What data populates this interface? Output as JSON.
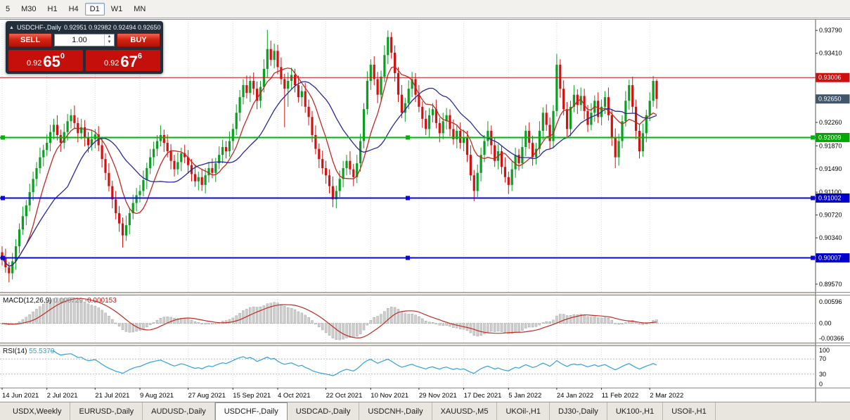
{
  "toolbar": {
    "timeframes": [
      {
        "label": "5",
        "active": false
      },
      {
        "label": "M30",
        "active": false
      },
      {
        "label": "H1",
        "active": false
      },
      {
        "label": "H4",
        "active": false
      },
      {
        "label": "D1",
        "active": true
      },
      {
        "label": "W1",
        "active": false
      },
      {
        "label": "MN",
        "active": false
      }
    ]
  },
  "trade_panel": {
    "collapse_icon": "▲",
    "symbol_title": "USDCHF-,Daily",
    "ohlc": "0.92951 0.92982 0.92494 0.92650",
    "sell_label": "SELL",
    "buy_label": "BUY",
    "volume": "1.00",
    "spin_up": "▲",
    "spin_down": "▼",
    "bid": {
      "prefix": "0.92",
      "big": "65",
      "sup": "0"
    },
    "ask": {
      "prefix": "0.92",
      "big": "67",
      "sup": "6"
    }
  },
  "chart_data": {
    "type": "candlestick",
    "symbol": "USDCHF",
    "timeframe": "Daily",
    "colors": {
      "up": "#0a9e22",
      "down": "#d41111",
      "grid": "#d9d9d9",
      "ma_fast": "#bf2a20",
      "ma_slow": "#28289a",
      "bg": "#ffffff"
    },
    "x_labels": [
      [
        "14 Jun 2021",
        0
      ],
      [
        "2 Jul 2021",
        13
      ],
      [
        "21 Jul 2021",
        27
      ],
      [
        "9 Aug 2021",
        40
      ],
      [
        "27 Aug 2021",
        54
      ],
      [
        "15 Sep 2021",
        67
      ],
      [
        "4 Oct 2021",
        80
      ],
      [
        "22 Oct 2021",
        94
      ],
      [
        "10 Nov 2021",
        107
      ],
      [
        "29 Nov 2021",
        121
      ],
      [
        "17 Dec 2021",
        134
      ],
      [
        "5 Jan 2022",
        147
      ],
      [
        "24 Jan 2022",
        161
      ],
      [
        "11 Feb 2022",
        174
      ],
      [
        "2 Mar 2022",
        188
      ]
    ],
    "price_axis": {
      "min": 0.8944,
      "max": 0.9398,
      "labels": [
        "0.93790",
        "0.93410",
        "0.92260",
        "0.91870",
        "0.91490",
        "0.91100",
        "0.90720",
        "0.90340",
        "0.89570"
      ],
      "tags": [
        {
          "value": "0.93006",
          "price": 0.93006,
          "color": "#cf0e0e"
        },
        {
          "value": "0.92650",
          "price": 0.9265,
          "color": "#42566a"
        },
        {
          "value": "0.92009",
          "price": 0.92009,
          "color": "#00a800"
        },
        {
          "value": "0.91002",
          "price": 0.91002,
          "color": "#0000cd"
        },
        {
          "value": "0.90007",
          "price": 0.90007,
          "color": "#0000cd"
        }
      ]
    },
    "hlines": [
      {
        "price": 0.93006,
        "color": "#cf0e0e",
        "width": 1,
        "handles": false
      },
      {
        "price": 0.92009,
        "color": "#00b50a",
        "width": 2,
        "handles": true
      },
      {
        "price": 0.91002,
        "color": "#0a0ad2",
        "width": 2,
        "handles": true
      },
      {
        "price": 0.90007,
        "color": "#0a0ad2",
        "width": 2,
        "handles": true
      }
    ],
    "ma": [
      {
        "period": 8,
        "color": "#bf2a20"
      },
      {
        "period": 20,
        "color": "#28289a"
      }
    ],
    "macd": {
      "label": "MACD(12,26,9)",
      "value": "0.000729",
      "signal_value": "-0.000153",
      "fast": 12,
      "slow": 26,
      "signal": 9,
      "axis": [
        "0.00596",
        "0.00",
        "-0.00366"
      ],
      "bar_color": "#cfcfcf",
      "bar_stroke": "#a3a3a3",
      "line_color": "#bf2a20"
    },
    "rsi": {
      "label": "RSI(14)",
      "value": "55.5379",
      "period": 14,
      "axis": [
        "100",
        "70",
        "30",
        "0"
      ],
      "levels": [
        70,
        30
      ],
      "color": "#2f9fe0"
    },
    "candles": [
      [
        0.901,
        0.902,
        0.8988,
        0.9
      ],
      [
        0.9,
        0.9016,
        0.8976,
        0.8985
      ],
      [
        0.8985,
        0.8994,
        0.896,
        0.8975
      ],
      [
        0.8975,
        0.9009,
        0.8965,
        0.8995
      ],
      [
        0.8995,
        0.9032,
        0.8981,
        0.902
      ],
      [
        0.902,
        0.9058,
        0.9008,
        0.9048
      ],
      [
        0.9048,
        0.9086,
        0.9039,
        0.907
      ],
      [
        0.907,
        0.9097,
        0.9055,
        0.9088
      ],
      [
        0.9088,
        0.9124,
        0.9078,
        0.911
      ],
      [
        0.911,
        0.9144,
        0.9096,
        0.9132
      ],
      [
        0.9132,
        0.916,
        0.912,
        0.915
      ],
      [
        0.915,
        0.9184,
        0.9141,
        0.9168
      ],
      [
        0.9168,
        0.9189,
        0.9153,
        0.918
      ],
      [
        0.918,
        0.9206,
        0.917,
        0.9192
      ],
      [
        0.9192,
        0.9222,
        0.9178,
        0.921
      ],
      [
        0.921,
        0.9232,
        0.9198,
        0.9222
      ],
      [
        0.9222,
        0.9238,
        0.9196,
        0.9205
      ],
      [
        0.9205,
        0.9214,
        0.9177,
        0.9192
      ],
      [
        0.9192,
        0.9224,
        0.9182,
        0.921
      ],
      [
        0.921,
        0.924,
        0.9196,
        0.9228
      ],
      [
        0.9228,
        0.9248,
        0.9216,
        0.9238
      ],
      [
        0.9238,
        0.9254,
        0.9216,
        0.9225
      ],
      [
        0.9225,
        0.9234,
        0.9193,
        0.9208
      ],
      [
        0.9208,
        0.9232,
        0.9198,
        0.9218
      ],
      [
        0.9218,
        0.923,
        0.9186,
        0.92
      ],
      [
        0.92,
        0.921,
        0.9176,
        0.9188
      ],
      [
        0.9188,
        0.9214,
        0.9179,
        0.9198
      ],
      [
        0.9198,
        0.9215,
        0.9183,
        0.9206
      ],
      [
        0.9206,
        0.922,
        0.9178,
        0.9188
      ],
      [
        0.9188,
        0.92,
        0.9151,
        0.9165
      ],
      [
        0.9165,
        0.9175,
        0.913,
        0.9142
      ],
      [
        0.9142,
        0.9158,
        0.9111,
        0.912
      ],
      [
        0.912,
        0.9129,
        0.9083,
        0.9098
      ],
      [
        0.9098,
        0.9112,
        0.9065,
        0.9075
      ],
      [
        0.9075,
        0.9087,
        0.9044,
        0.9058
      ],
      [
        0.9058,
        0.9068,
        0.9018,
        0.9038
      ],
      [
        0.9038,
        0.9071,
        0.9029,
        0.9055
      ],
      [
        0.9055,
        0.9084,
        0.904,
        0.9075
      ],
      [
        0.9075,
        0.9106,
        0.9065,
        0.9092
      ],
      [
        0.9092,
        0.9117,
        0.9078,
        0.9105
      ],
      [
        0.9105,
        0.9122,
        0.9093,
        0.9112
      ],
      [
        0.9112,
        0.9146,
        0.9103,
        0.913
      ],
      [
        0.913,
        0.9159,
        0.9115,
        0.915
      ],
      [
        0.915,
        0.9182,
        0.914,
        0.9168
      ],
      [
        0.9168,
        0.9194,
        0.9154,
        0.9182
      ],
      [
        0.9182,
        0.9205,
        0.917,
        0.9195
      ],
      [
        0.9195,
        0.9221,
        0.9186,
        0.9205
      ],
      [
        0.9205,
        0.9214,
        0.9177,
        0.9192
      ],
      [
        0.9192,
        0.9206,
        0.9168,
        0.9178
      ],
      [
        0.9178,
        0.919,
        0.9148,
        0.9162
      ],
      [
        0.9162,
        0.9172,
        0.9136,
        0.9148
      ],
      [
        0.9148,
        0.9176,
        0.9139,
        0.916
      ],
      [
        0.916,
        0.9184,
        0.9145,
        0.9175
      ],
      [
        0.9175,
        0.9189,
        0.9158,
        0.9168
      ],
      [
        0.9168,
        0.918,
        0.9141,
        0.9155
      ],
      [
        0.9155,
        0.9165,
        0.9128,
        0.914
      ],
      [
        0.914,
        0.9156,
        0.9119,
        0.9128
      ],
      [
        0.9128,
        0.9144,
        0.9113,
        0.9135
      ],
      [
        0.9135,
        0.9149,
        0.9112,
        0.9122
      ],
      [
        0.9122,
        0.915,
        0.9108,
        0.9138
      ],
      [
        0.9138,
        0.916,
        0.9126,
        0.915
      ],
      [
        0.915,
        0.9166,
        0.9133,
        0.9142
      ],
      [
        0.9142,
        0.9167,
        0.9127,
        0.9158
      ],
      [
        0.9158,
        0.9186,
        0.9148,
        0.9172
      ],
      [
        0.9172,
        0.9197,
        0.9158,
        0.9185
      ],
      [
        0.9185,
        0.9195,
        0.9166,
        0.9178
      ],
      [
        0.9178,
        0.9211,
        0.9169,
        0.9195
      ],
      [
        0.9195,
        0.9224,
        0.918,
        0.9215
      ],
      [
        0.9215,
        0.9256,
        0.9205,
        0.9242
      ],
      [
        0.9242,
        0.928,
        0.9228,
        0.9268
      ],
      [
        0.9268,
        0.9298,
        0.9256,
        0.9288
      ],
      [
        0.9288,
        0.9304,
        0.9266,
        0.9275
      ],
      [
        0.9275,
        0.9304,
        0.926,
        0.9295
      ],
      [
        0.9295,
        0.9309,
        0.9272,
        0.9282
      ],
      [
        0.9282,
        0.9294,
        0.9248,
        0.9262
      ],
      [
        0.9262,
        0.9295,
        0.925,
        0.9285
      ],
      [
        0.9285,
        0.9331,
        0.9276,
        0.9315
      ],
      [
        0.9315,
        0.938,
        0.93,
        0.9348
      ],
      [
        0.9348,
        0.9362,
        0.932,
        0.933
      ],
      [
        0.933,
        0.9357,
        0.9316,
        0.9345
      ],
      [
        0.9345,
        0.9355,
        0.9306,
        0.9318
      ],
      [
        0.9318,
        0.9334,
        0.9289,
        0.9298
      ],
      [
        0.9298,
        0.9307,
        0.9218,
        0.9282
      ],
      [
        0.9282,
        0.9309,
        0.9252,
        0.9295
      ],
      [
        0.9295,
        0.9317,
        0.9281,
        0.9305
      ],
      [
        0.9305,
        0.9315,
        0.9276,
        0.9288
      ],
      [
        0.9288,
        0.9304,
        0.9259,
        0.9268
      ],
      [
        0.9268,
        0.9287,
        0.9253,
        0.9278
      ],
      [
        0.9278,
        0.9292,
        0.9242,
        0.9252
      ],
      [
        0.9252,
        0.9264,
        0.9221,
        0.9235
      ],
      [
        0.9235,
        0.9245,
        0.9193,
        0.9205
      ],
      [
        0.9205,
        0.9221,
        0.9173,
        0.9182
      ],
      [
        0.9182,
        0.9191,
        0.915,
        0.9165
      ],
      [
        0.9165,
        0.9179,
        0.914,
        0.915
      ],
      [
        0.915,
        0.9162,
        0.9124,
        0.9138
      ],
      [
        0.9138,
        0.9148,
        0.9108,
        0.912
      ],
      [
        0.912,
        0.9136,
        0.9085,
        0.9098
      ],
      [
        0.9098,
        0.9121,
        0.9083,
        0.9112
      ],
      [
        0.9112,
        0.9146,
        0.9102,
        0.9132
      ],
      [
        0.9132,
        0.9162,
        0.9118,
        0.915
      ],
      [
        0.915,
        0.9172,
        0.9138,
        0.9162
      ],
      [
        0.9162,
        0.9178,
        0.9139,
        0.9148
      ],
      [
        0.9148,
        0.9157,
        0.912,
        0.9135
      ],
      [
        0.9135,
        0.9172,
        0.9125,
        0.9158
      ],
      [
        0.9158,
        0.9207,
        0.9144,
        0.9195
      ],
      [
        0.9195,
        0.9258,
        0.9183,
        0.9248
      ],
      [
        0.9248,
        0.9311,
        0.9239,
        0.9295
      ],
      [
        0.9295,
        0.9331,
        0.928,
        0.9322
      ],
      [
        0.9322,
        0.9336,
        0.9288,
        0.9298
      ],
      [
        0.9298,
        0.931,
        0.9258,
        0.9272
      ],
      [
        0.9272,
        0.9312,
        0.926,
        0.9302
      ],
      [
        0.9302,
        0.9354,
        0.9293,
        0.9338
      ],
      [
        0.9338,
        0.9379,
        0.9323,
        0.9368
      ],
      [
        0.9368,
        0.9376,
        0.9332,
        0.9342
      ],
      [
        0.9342,
        0.9354,
        0.9294,
        0.9308
      ],
      [
        0.9308,
        0.9318,
        0.926,
        0.9272
      ],
      [
        0.9272,
        0.9288,
        0.9233,
        0.9242
      ],
      [
        0.9242,
        0.9267,
        0.9227,
        0.9258
      ],
      [
        0.9258,
        0.9296,
        0.9248,
        0.9282
      ],
      [
        0.9282,
        0.931,
        0.9268,
        0.9298
      ],
      [
        0.9298,
        0.9308,
        0.926,
        0.9272
      ],
      [
        0.9272,
        0.9288,
        0.9243,
        0.9252
      ],
      [
        0.9252,
        0.9261,
        0.9217,
        0.9232
      ],
      [
        0.9232,
        0.9246,
        0.9205,
        0.9215
      ],
      [
        0.9215,
        0.925,
        0.9201,
        0.9238
      ],
      [
        0.9238,
        0.9258,
        0.9226,
        0.9248
      ],
      [
        0.9248,
        0.9264,
        0.9216,
        0.9225
      ],
      [
        0.9225,
        0.9234,
        0.9193,
        0.9208
      ],
      [
        0.9208,
        0.9242,
        0.9198,
        0.9228
      ],
      [
        0.9228,
        0.925,
        0.9214,
        0.9238
      ],
      [
        0.9238,
        0.9248,
        0.9203,
        0.9215
      ],
      [
        0.9215,
        0.9231,
        0.9189,
        0.9198
      ],
      [
        0.9198,
        0.9221,
        0.9183,
        0.9212
      ],
      [
        0.9212,
        0.9226,
        0.9182,
        0.9192
      ],
      [
        0.9192,
        0.9214,
        0.9178,
        0.9202
      ],
      [
        0.9202,
        0.9212,
        0.916,
        0.9172
      ],
      [
        0.9172,
        0.9188,
        0.9129,
        0.9138
      ],
      [
        0.9138,
        0.9147,
        0.9095,
        0.9112
      ],
      [
        0.9112,
        0.9156,
        0.9102,
        0.9142
      ],
      [
        0.9142,
        0.9184,
        0.9128,
        0.9172
      ],
      [
        0.9172,
        0.9205,
        0.916,
        0.9195
      ],
      [
        0.9195,
        0.9228,
        0.9186,
        0.9212
      ],
      [
        0.9212,
        0.9221,
        0.9173,
        0.9188
      ],
      [
        0.9188,
        0.9202,
        0.9152,
        0.9162
      ],
      [
        0.9162,
        0.919,
        0.9148,
        0.9178
      ],
      [
        0.9178,
        0.9188,
        0.914,
        0.9152
      ],
      [
        0.9152,
        0.9168,
        0.9126,
        0.9135
      ],
      [
        0.9135,
        0.9144,
        0.9107,
        0.9122
      ],
      [
        0.9122,
        0.9162,
        0.9112,
        0.9148
      ],
      [
        0.9148,
        0.9184,
        0.9134,
        0.9172
      ],
      [
        0.9172,
        0.9182,
        0.9146,
        0.9158
      ],
      [
        0.9158,
        0.9201,
        0.9149,
        0.9185
      ],
      [
        0.9185,
        0.9221,
        0.917,
        0.9212
      ],
      [
        0.9212,
        0.9226,
        0.9182,
        0.9192
      ],
      [
        0.9192,
        0.9204,
        0.9154,
        0.9168
      ],
      [
        0.9168,
        0.9192,
        0.9156,
        0.9182
      ],
      [
        0.9182,
        0.9228,
        0.9173,
        0.9212
      ],
      [
        0.9212,
        0.9251,
        0.9197,
        0.9242
      ],
      [
        0.9242,
        0.9256,
        0.9212,
        0.9222
      ],
      [
        0.9222,
        0.9234,
        0.9181,
        0.9195
      ],
      [
        0.9195,
        0.9255,
        0.9183,
        0.9245
      ],
      [
        0.9245,
        0.934,
        0.9236,
        0.9322
      ],
      [
        0.9322,
        0.9331,
        0.9267,
        0.9282
      ],
      [
        0.9282,
        0.9296,
        0.9238,
        0.9248
      ],
      [
        0.9248,
        0.926,
        0.9201,
        0.9215
      ],
      [
        0.9215,
        0.9262,
        0.9203,
        0.9252
      ],
      [
        0.9252,
        0.9288,
        0.9243,
        0.9272
      ],
      [
        0.9272,
        0.9281,
        0.924,
        0.9255
      ],
      [
        0.9255,
        0.9284,
        0.9245,
        0.927
      ],
      [
        0.927,
        0.9282,
        0.9231,
        0.9245
      ],
      [
        0.9245,
        0.9255,
        0.921,
        0.9222
      ],
      [
        0.9222,
        0.9258,
        0.9213,
        0.9242
      ],
      [
        0.9242,
        0.9271,
        0.9227,
        0.9262
      ],
      [
        0.9262,
        0.9276,
        0.9225,
        0.9235
      ],
      [
        0.9235,
        0.9264,
        0.9221,
        0.9252
      ],
      [
        0.9252,
        0.9278,
        0.924,
        0.9268
      ],
      [
        0.9268,
        0.9284,
        0.9229,
        0.9238
      ],
      [
        0.9238,
        0.9247,
        0.9187,
        0.9202
      ],
      [
        0.9202,
        0.9216,
        0.915,
        0.9168
      ],
      [
        0.9168,
        0.9207,
        0.9154,
        0.9195
      ],
      [
        0.9195,
        0.9238,
        0.9183,
        0.9228
      ],
      [
        0.9228,
        0.9278,
        0.9219,
        0.9262
      ],
      [
        0.9262,
        0.9297,
        0.9247,
        0.9288
      ],
      [
        0.9288,
        0.9302,
        0.9242,
        0.9252
      ],
      [
        0.9252,
        0.9264,
        0.9198,
        0.9212
      ],
      [
        0.9212,
        0.9222,
        0.9166,
        0.9178
      ],
      [
        0.9178,
        0.9224,
        0.9169,
        0.9208
      ],
      [
        0.9208,
        0.9247,
        0.9193,
        0.9238
      ],
      [
        0.9238,
        0.9276,
        0.9228,
        0.9262
      ],
      [
        0.9262,
        0.9303,
        0.9252,
        0.9295
      ],
      [
        0.9295,
        0.9298,
        0.9249,
        0.9265
      ]
    ]
  },
  "tabs": [
    {
      "label": "USDX,Weekly",
      "active": false
    },
    {
      "label": "EURUSD-,Daily",
      "active": false
    },
    {
      "label": "AUDUSD-,Daily",
      "active": false
    },
    {
      "label": "USDCHF-,Daily",
      "active": true
    },
    {
      "label": "USDCAD-,Daily",
      "active": false
    },
    {
      "label": "USDCNH-,Daily",
      "active": false
    },
    {
      "label": "XAUUSD-,M5",
      "active": false
    },
    {
      "label": "UKOil-,H1",
      "active": false
    },
    {
      "label": "DJ30-,Daily",
      "active": false
    },
    {
      "label": "UK100-,H1",
      "active": false
    },
    {
      "label": "USOil-,H1",
      "active": false
    }
  ]
}
